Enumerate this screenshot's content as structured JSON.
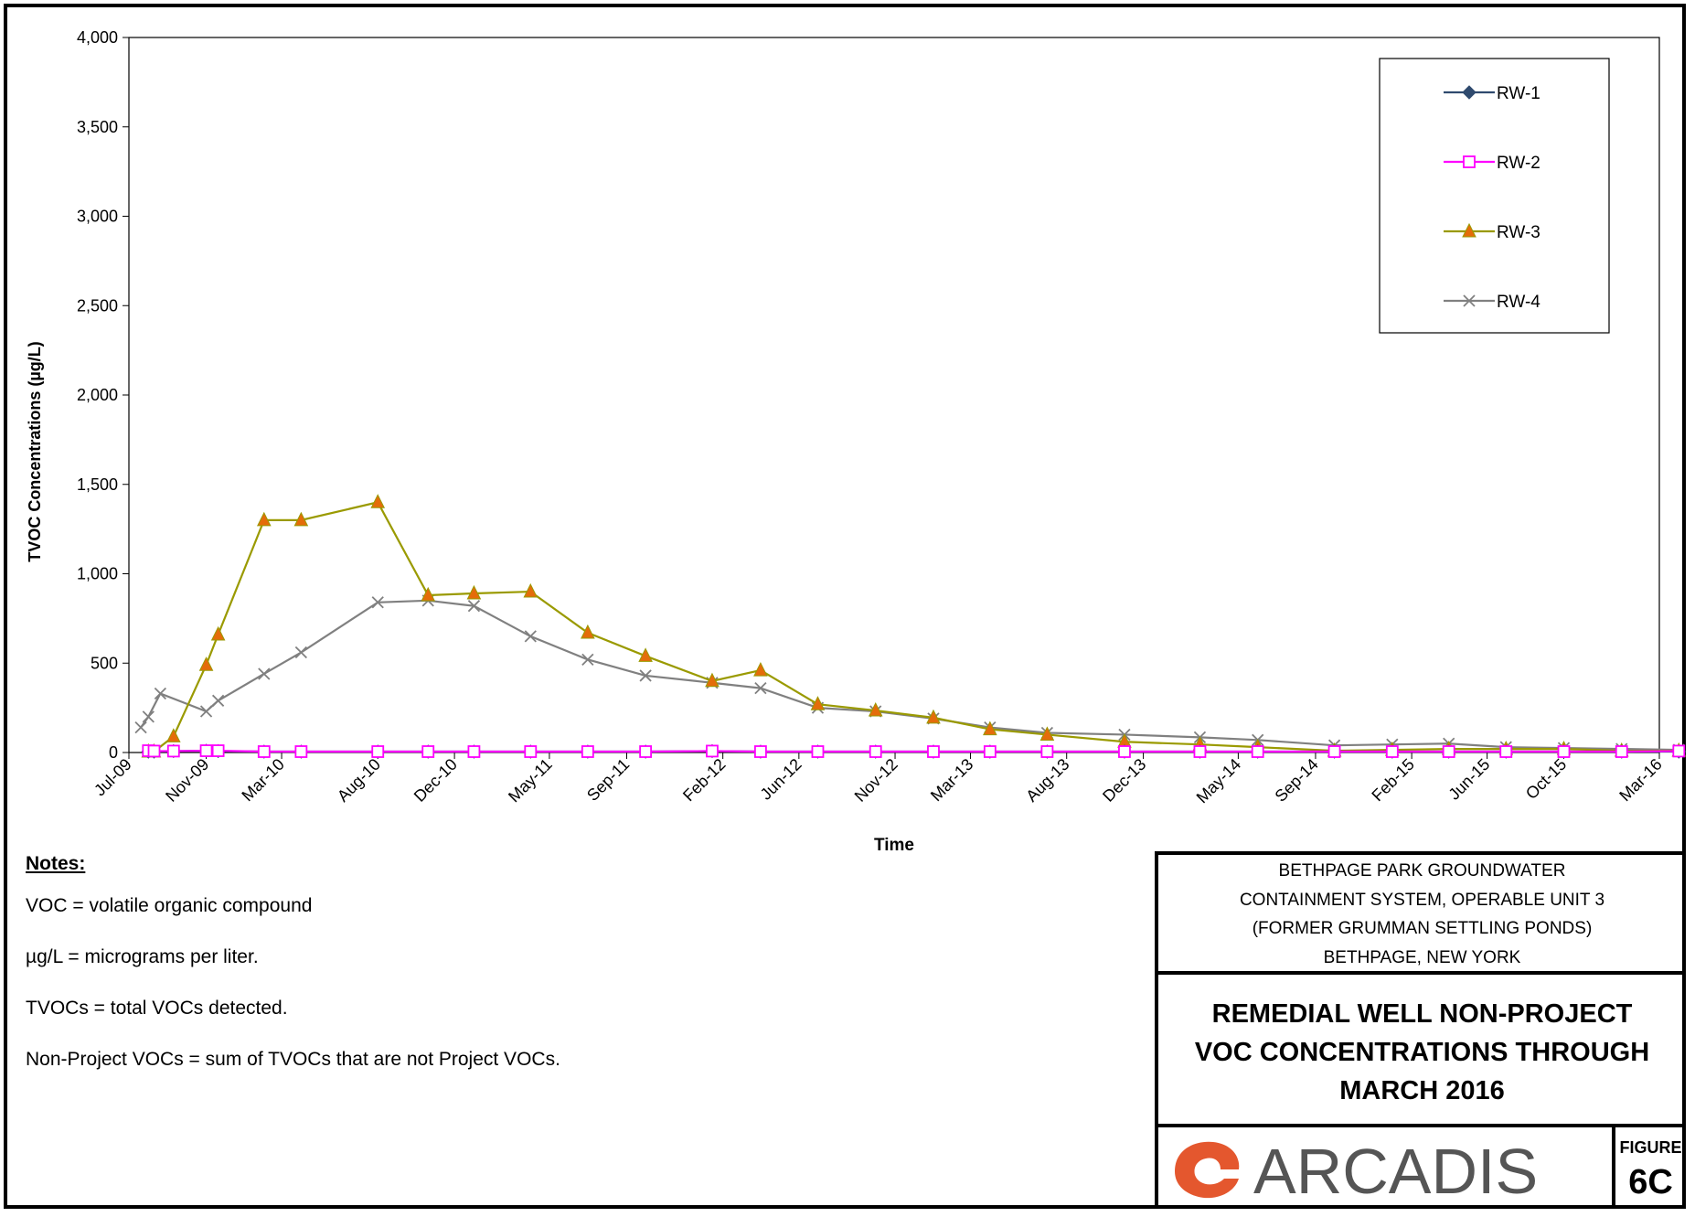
{
  "chart_data": {
    "type": "line",
    "title": "",
    "xlabel": "Time",
    "ylabel": "TVOC Concentrations (µg/L)",
    "ylim": [
      0,
      4000
    ],
    "yticks": [
      0,
      500,
      1000,
      1500,
      2000,
      2500,
      3000,
      3500,
      4000
    ],
    "ytick_labels": [
      "0",
      "500",
      "1,000",
      "1,500",
      "2,000",
      "2,500",
      "3,000",
      "3,500",
      "4,000"
    ],
    "xlim": [
      "2009-07-01",
      "2016-03-01"
    ],
    "xtick_labels": [
      {
        "label": "Jul-09",
        "date": "2009-07-01"
      },
      {
        "label": "Nov-09",
        "date": "2009-11-01"
      },
      {
        "label": "Mar-10",
        "date": "2010-03-01"
      },
      {
        "label": "Aug-10",
        "date": "2010-08-01"
      },
      {
        "label": "Dec-10",
        "date": "2010-12-01"
      },
      {
        "label": "May-11",
        "date": "2011-05-01"
      },
      {
        "label": "Sep-11",
        "date": "2011-09-01"
      },
      {
        "label": "Feb-12",
        "date": "2012-02-01"
      },
      {
        "label": "Jun-12",
        "date": "2012-06-01"
      },
      {
        "label": "Nov-12",
        "date": "2012-11-01"
      },
      {
        "label": "Mar-13",
        "date": "2013-03-01"
      },
      {
        "label": "Aug-13",
        "date": "2013-08-01"
      },
      {
        "label": "Dec-13",
        "date": "2013-12-01"
      },
      {
        "label": "May-14",
        "date": "2014-05-01"
      },
      {
        "label": "Sep-14",
        "date": "2014-09-01"
      },
      {
        "label": "Feb-15",
        "date": "2015-02-01"
      },
      {
        "label": "Jun-15",
        "date": "2015-06-01"
      },
      {
        "label": "Oct-15",
        "date": "2015-10-01"
      },
      {
        "label": "Mar-16",
        "date": "2016-03-01"
      }
    ],
    "grid": false,
    "legend_position": "top-right",
    "series": [
      {
        "name": "RW-1",
        "color": "#2F4A6E",
        "marker": "diamond",
        "points": [
          {
            "date": "2009-08-01",
            "value": 5
          },
          {
            "date": "2009-08-10",
            "value": 5
          },
          {
            "date": "2009-09-10",
            "value": 8
          },
          {
            "date": "2009-11-01",
            "value": 10
          },
          {
            "date": "2009-11-20",
            "value": 8
          },
          {
            "date": "2010-02-01",
            "value": 5
          },
          {
            "date": "2010-04-01",
            "value": 5
          },
          {
            "date": "2010-08-01",
            "value": 5
          },
          {
            "date": "2010-10-20",
            "value": 5
          },
          {
            "date": "2011-01-01",
            "value": 5
          },
          {
            "date": "2011-04-01",
            "value": 5
          },
          {
            "date": "2011-07-01",
            "value": 5
          },
          {
            "date": "2011-10-01",
            "value": 5
          },
          {
            "date": "2012-01-15",
            "value": 8
          },
          {
            "date": "2012-04-01",
            "value": 5
          },
          {
            "date": "2012-07-01",
            "value": 5
          },
          {
            "date": "2012-10-01",
            "value": 5
          },
          {
            "date": "2013-01-01",
            "value": 5
          },
          {
            "date": "2013-04-01",
            "value": 5
          },
          {
            "date": "2013-07-01",
            "value": 5
          },
          {
            "date": "2013-11-01",
            "value": 5
          },
          {
            "date": "2014-03-01",
            "value": 5
          },
          {
            "date": "2014-06-01",
            "value": 5
          },
          {
            "date": "2014-10-01",
            "value": 5
          },
          {
            "date": "2015-01-01",
            "value": 5
          },
          {
            "date": "2015-04-01",
            "value": 5
          },
          {
            "date": "2015-07-01",
            "value": 5
          },
          {
            "date": "2015-10-01",
            "value": 5
          },
          {
            "date": "2016-01-01",
            "value": 5
          },
          {
            "date": "2016-04-01",
            "value": 5
          }
        ]
      },
      {
        "name": "RW-2",
        "color": "#FF00FF",
        "marker": "square",
        "points": [
          {
            "date": "2009-08-01",
            "value": 10
          },
          {
            "date": "2009-08-10",
            "value": 8
          },
          {
            "date": "2009-09-10",
            "value": 8
          },
          {
            "date": "2009-11-01",
            "value": 10
          },
          {
            "date": "2009-11-20",
            "value": 10
          },
          {
            "date": "2010-02-01",
            "value": 5
          },
          {
            "date": "2010-04-01",
            "value": 5
          },
          {
            "date": "2010-08-01",
            "value": 5
          },
          {
            "date": "2010-10-20",
            "value": 5
          },
          {
            "date": "2011-01-01",
            "value": 5
          },
          {
            "date": "2011-04-01",
            "value": 5
          },
          {
            "date": "2011-07-01",
            "value": 5
          },
          {
            "date": "2011-10-01",
            "value": 5
          },
          {
            "date": "2012-01-15",
            "value": 8
          },
          {
            "date": "2012-04-01",
            "value": 5
          },
          {
            "date": "2012-07-01",
            "value": 5
          },
          {
            "date": "2012-10-01",
            "value": 5
          },
          {
            "date": "2013-01-01",
            "value": 5
          },
          {
            "date": "2013-04-01",
            "value": 5
          },
          {
            "date": "2013-07-01",
            "value": 5
          },
          {
            "date": "2013-11-01",
            "value": 5
          },
          {
            "date": "2014-03-01",
            "value": 5
          },
          {
            "date": "2014-06-01",
            "value": 5
          },
          {
            "date": "2014-10-01",
            "value": 5
          },
          {
            "date": "2015-01-01",
            "value": 5
          },
          {
            "date": "2015-04-01",
            "value": 5
          },
          {
            "date": "2015-07-01",
            "value": 5
          },
          {
            "date": "2015-10-01",
            "value": 5
          },
          {
            "date": "2016-01-01",
            "value": 5
          },
          {
            "date": "2016-04-01",
            "value": 8
          }
        ]
      },
      {
        "name": "RW-3",
        "color": "#9A9A00",
        "marker": "triangle",
        "marker_color": "#E46C0A",
        "points": [
          {
            "date": "2009-08-01",
            "value": 5
          },
          {
            "date": "2009-08-10",
            "value": 5
          },
          {
            "date": "2009-09-10",
            "value": 90
          },
          {
            "date": "2009-11-01",
            "value": 490
          },
          {
            "date": "2009-11-20",
            "value": 660
          },
          {
            "date": "2010-02-01",
            "value": 1300
          },
          {
            "date": "2010-04-01",
            "value": 1300
          },
          {
            "date": "2010-08-01",
            "value": 1400
          },
          {
            "date": "2010-10-20",
            "value": 880
          },
          {
            "date": "2011-01-01",
            "value": 890
          },
          {
            "date": "2011-04-01",
            "value": 900
          },
          {
            "date": "2011-07-01",
            "value": 670
          },
          {
            "date": "2011-10-01",
            "value": 540
          },
          {
            "date": "2012-01-15",
            "value": 400
          },
          {
            "date": "2012-04-01",
            "value": 460
          },
          {
            "date": "2012-07-01",
            "value": 270
          },
          {
            "date": "2012-10-01",
            "value": 235
          },
          {
            "date": "2013-01-01",
            "value": 195
          },
          {
            "date": "2013-04-01",
            "value": 130
          },
          {
            "date": "2013-07-01",
            "value": 100
          },
          {
            "date": "2013-11-01",
            "value": 60
          },
          {
            "date": "2014-03-01",
            "value": 45
          },
          {
            "date": "2014-06-01",
            "value": 30
          },
          {
            "date": "2014-10-01",
            "value": 10
          },
          {
            "date": "2015-01-01",
            "value": 15
          },
          {
            "date": "2015-04-01",
            "value": 20
          },
          {
            "date": "2015-07-01",
            "value": 20
          },
          {
            "date": "2015-10-01",
            "value": 20
          },
          {
            "date": "2016-01-01",
            "value": 10
          },
          {
            "date": "2016-04-01",
            "value": 10
          }
        ]
      },
      {
        "name": "RW-4",
        "color": "#808080",
        "marker": "x",
        "points": [
          {
            "date": "2009-07-20",
            "value": 140
          },
          {
            "date": "2009-08-01",
            "value": 200
          },
          {
            "date": "2009-08-20",
            "value": 330
          },
          {
            "date": "2009-11-01",
            "value": 230
          },
          {
            "date": "2009-11-20",
            "value": 290
          },
          {
            "date": "2010-02-01",
            "value": 440
          },
          {
            "date": "2010-04-01",
            "value": 560
          },
          {
            "date": "2010-08-01",
            "value": 840
          },
          {
            "date": "2010-10-20",
            "value": 850
          },
          {
            "date": "2011-01-01",
            "value": 820
          },
          {
            "date": "2011-04-01",
            "value": 650
          },
          {
            "date": "2011-07-01",
            "value": 520
          },
          {
            "date": "2011-10-01",
            "value": 430
          },
          {
            "date": "2012-01-15",
            "value": 390
          },
          {
            "date": "2012-04-01",
            "value": 360
          },
          {
            "date": "2012-07-01",
            "value": 250
          },
          {
            "date": "2012-10-01",
            "value": 230
          },
          {
            "date": "2013-01-01",
            "value": 190
          },
          {
            "date": "2013-04-01",
            "value": 140
          },
          {
            "date": "2013-07-01",
            "value": 110
          },
          {
            "date": "2013-11-01",
            "value": 100
          },
          {
            "date": "2014-03-01",
            "value": 85
          },
          {
            "date": "2014-06-01",
            "value": 70
          },
          {
            "date": "2014-10-01",
            "value": 40
          },
          {
            "date": "2015-01-01",
            "value": 45
          },
          {
            "date": "2015-04-01",
            "value": 50
          },
          {
            "date": "2015-07-01",
            "value": 30
          },
          {
            "date": "2015-10-01",
            "value": 25
          },
          {
            "date": "2016-01-01",
            "value": 20
          },
          {
            "date": "2016-04-01",
            "value": 15
          }
        ]
      }
    ]
  },
  "notes": {
    "header": "Notes:",
    "lines": [
      "VOC = volatile organic compound",
      "µg/L = micrograms per liter.",
      "TVOCs = total VOCs detected.",
      "Non-Project VOCs = sum of TVOCs that are not Project VOCs."
    ]
  },
  "title_block": {
    "project_lines": [
      "BETHPAGE PARK GROUNDWATER",
      "CONTAINMENT SYSTEM, OPERABLE UNIT 3",
      "(FORMER GRUMMAN SETTLING PONDS)",
      "BETHPAGE, NEW YORK"
    ],
    "title_lines": [
      "REMEDIAL WELL NON-PROJECT",
      "VOC CONCENTRATIONS THROUGH",
      "MARCH 2016"
    ],
    "logo_text": "ARCADIS",
    "logo_color": "#E4572E",
    "figure_label": "FIGURE",
    "figure_number": "6C"
  }
}
